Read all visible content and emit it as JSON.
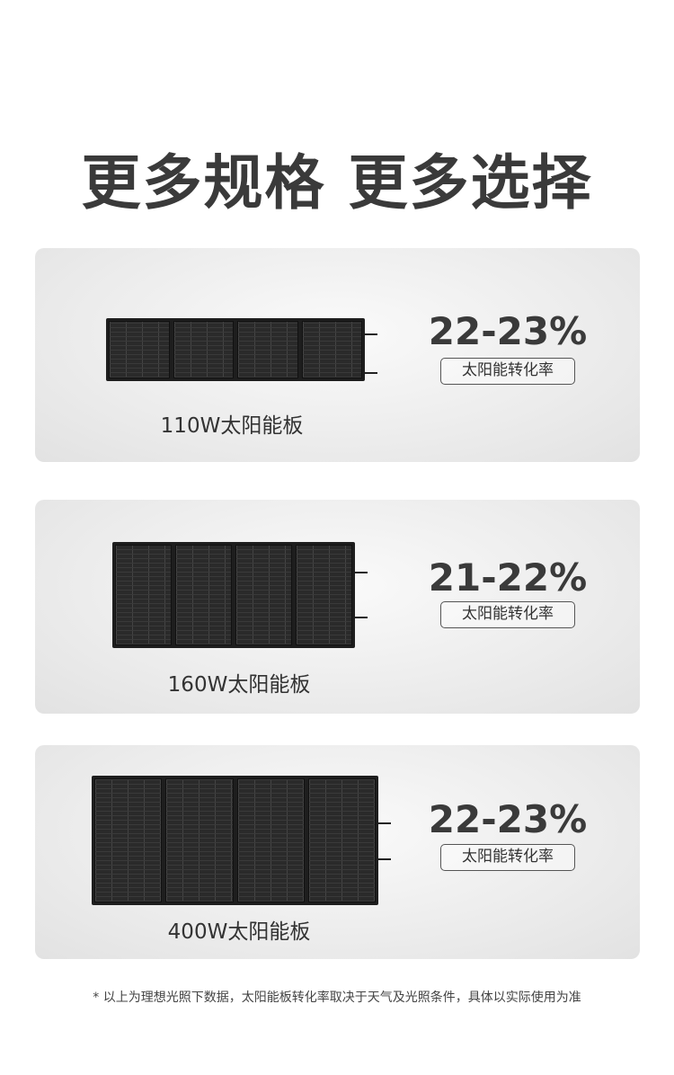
{
  "title": "更多规格 更多选择",
  "products": [
    {
      "name": "110W太阳能板",
      "efficiency": "22-23%",
      "efficiency_label": "太阳能转化率"
    },
    {
      "name": "160W太阳能板",
      "efficiency": "21-22%",
      "efficiency_label": "太阳能转化率"
    },
    {
      "name": "400W太阳能板",
      "efficiency": "22-23%",
      "efficiency_label": "太阳能转化率"
    }
  ],
  "footnote": "* 以上为理想光照下数据，太阳能板转化率取决于天气及光照条件，具体以实际使用为准"
}
